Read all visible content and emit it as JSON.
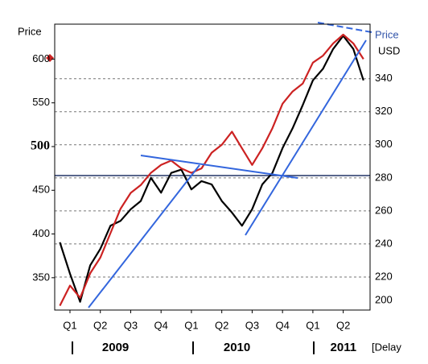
{
  "chart_data": {
    "type": "line",
    "y_label": "Price",
    "y2_label": "Price",
    "y2_unit": "USD",
    "note": "[Delay",
    "categories": [
      null,
      "Q1",
      null,
      null,
      "Q2",
      null,
      null,
      "Q3",
      null,
      null,
      "Q4",
      null,
      null,
      "Q1",
      null,
      null,
      "Q2",
      null,
      null,
      "Q3",
      null,
      null,
      "Q4",
      null,
      null,
      "Q1",
      null,
      null,
      "Q2",
      null,
      null
    ],
    "x_groups": [
      "2009",
      "2010",
      "2011"
    ],
    "ylim": [
      313,
      640
    ],
    "yticks": [
      350,
      400,
      450,
      500,
      550,
      600
    ],
    "y2lim": [
      200,
      373
    ],
    "y2ticks": [
      200,
      220,
      240,
      260,
      280,
      300,
      320,
      340
    ],
    "grid": true,
    "series": [
      {
        "name": "USD",
        "color": "#000000",
        "axis": "y2",
        "values": [
          241,
          222,
          205,
          227,
          237,
          251,
          254,
          261,
          266,
          280,
          271,
          283,
          285,
          273,
          278,
          276,
          266,
          259,
          251,
          261,
          276,
          283,
          298,
          310,
          324,
          339,
          346,
          358,
          366,
          358,
          339
        ]
      },
      {
        "name": "Price",
        "color": "#cc2222",
        "values": [
          318,
          341,
          327,
          355,
          373,
          401,
          429,
          447,
          456,
          470,
          479,
          484,
          475,
          470,
          475,
          493,
          502,
          517,
          498,
          479,
          498,
          521,
          549,
          563,
          572,
          596,
          604,
          618,
          628,
          618,
          600
        ]
      }
    ]
  }
}
